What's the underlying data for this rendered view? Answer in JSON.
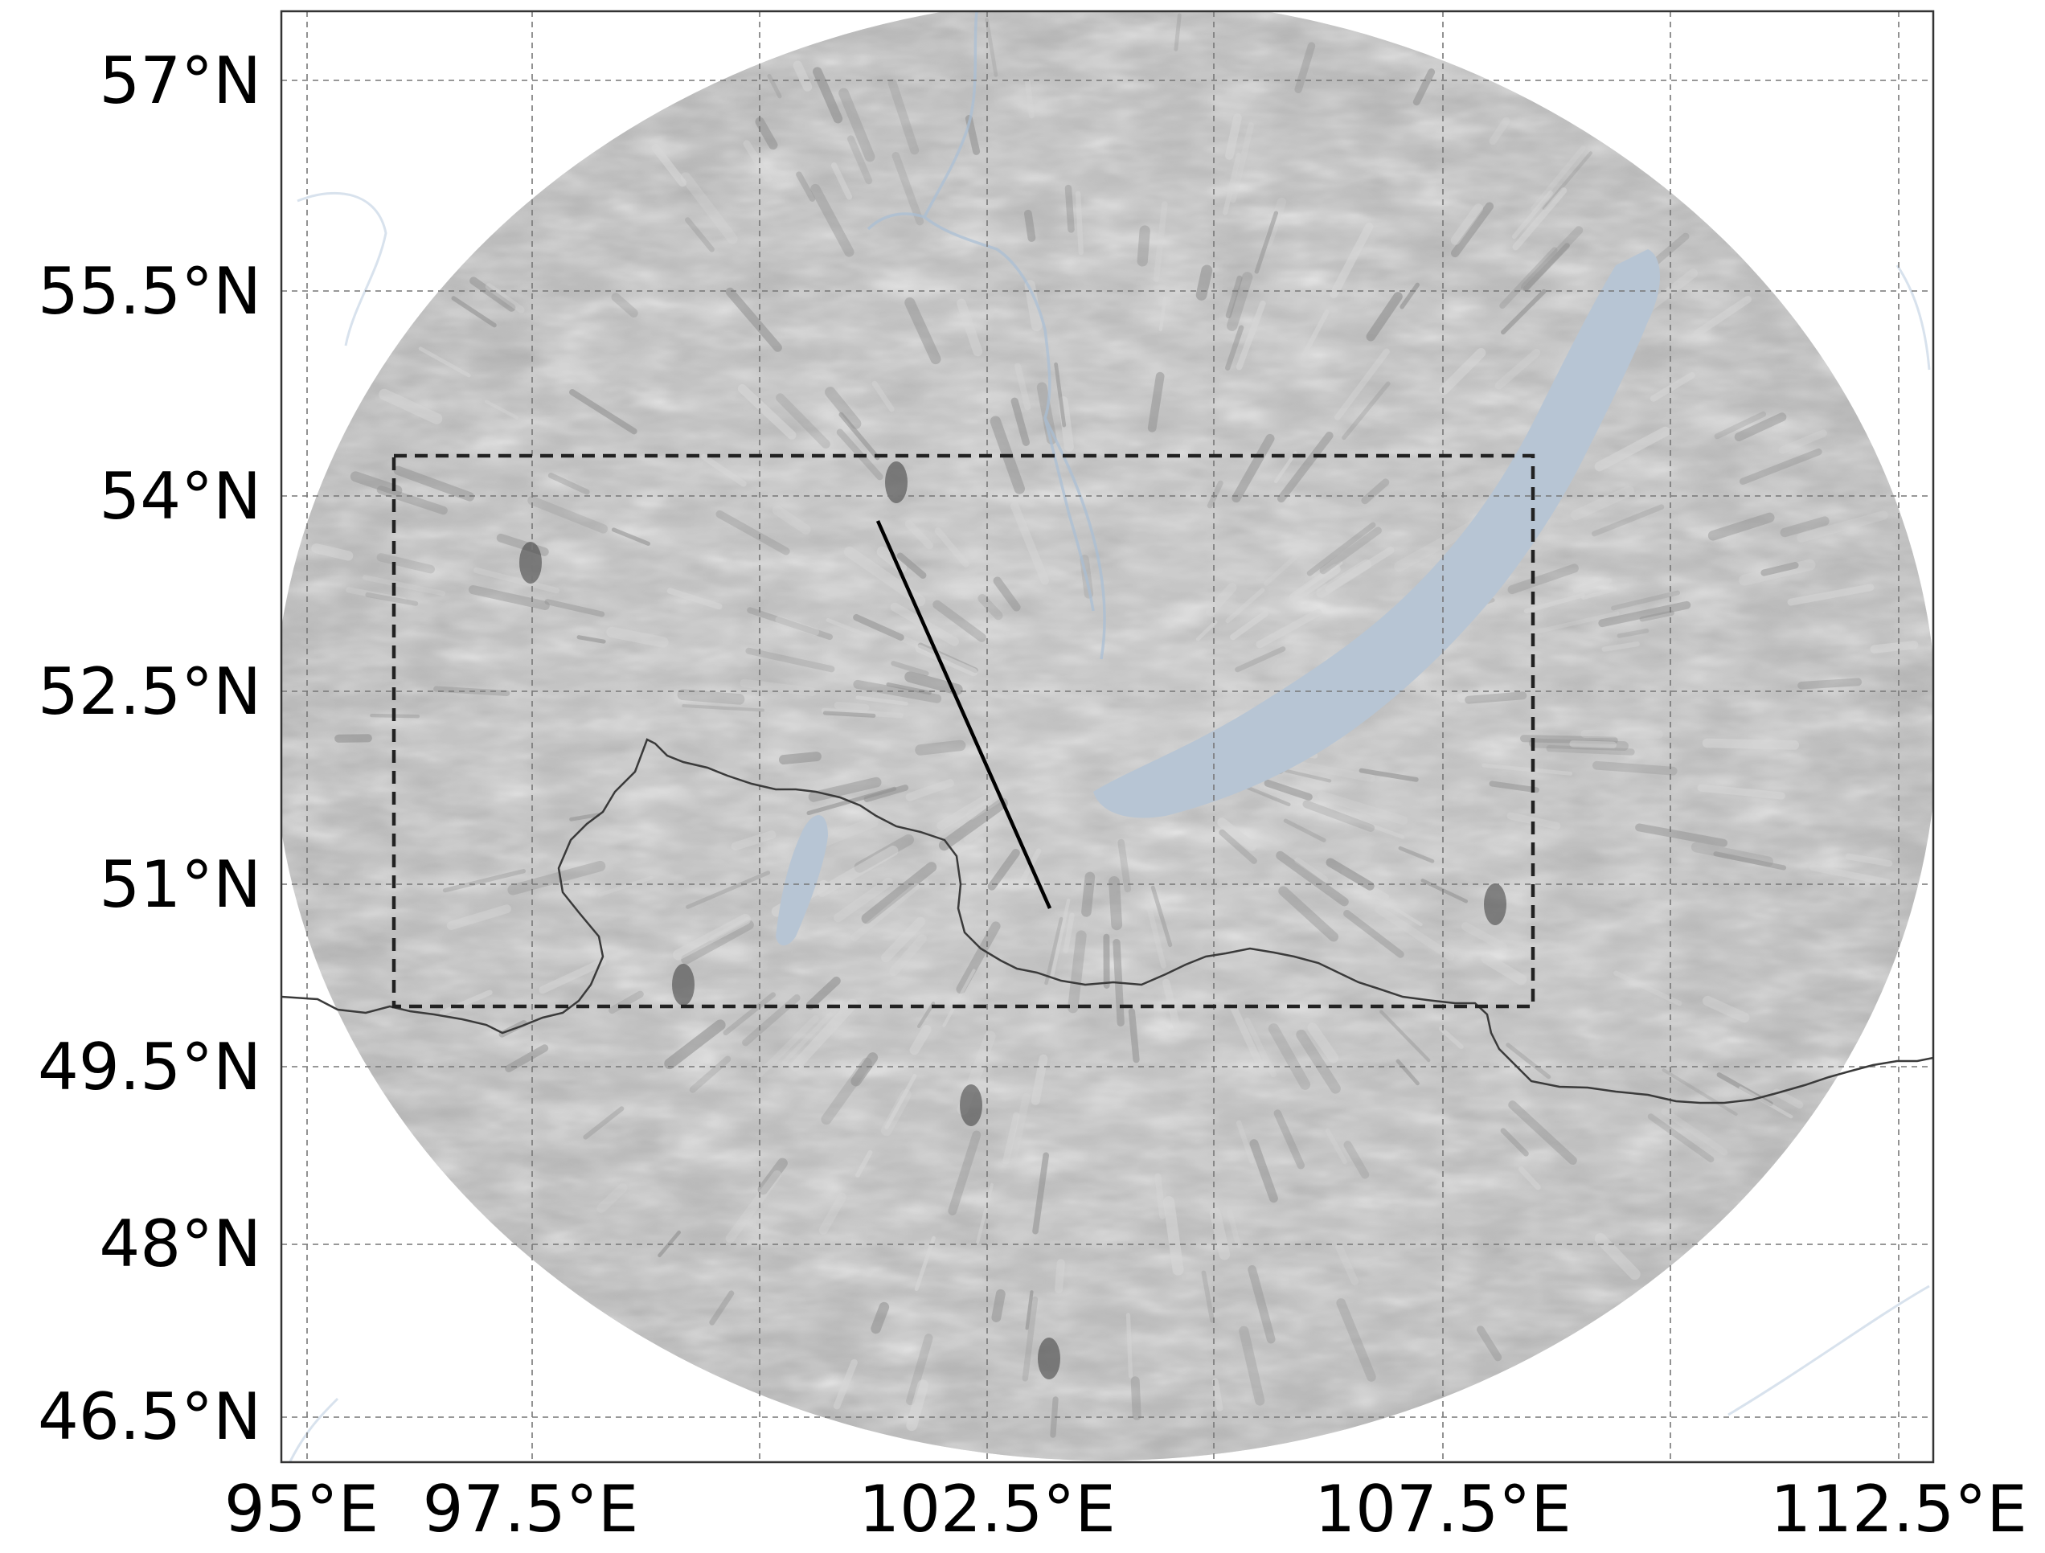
{
  "map": {
    "y_tick_labels": [
      "57°N",
      "55.5°N",
      "54°N",
      "52.5°N",
      "51°N",
      "49.5°N",
      "48°N",
      "46.5°N"
    ],
    "x_tick_labels": [
      "95°E",
      "97.5°E",
      "102.5°E",
      "107.5°E",
      "112.5°E"
    ],
    "colors": {
      "field_base": "#b8b8b8",
      "lake_fill": "#b7c5d4",
      "river_stroke": "#a9bfd6",
      "border_stroke": "#3a3a3a",
      "grid_stroke": "#777777",
      "box_stroke": "#222222",
      "profile_line": "#000000"
    },
    "features": {
      "dashed_box_label": "",
      "profile_line_label": ""
    }
  }
}
